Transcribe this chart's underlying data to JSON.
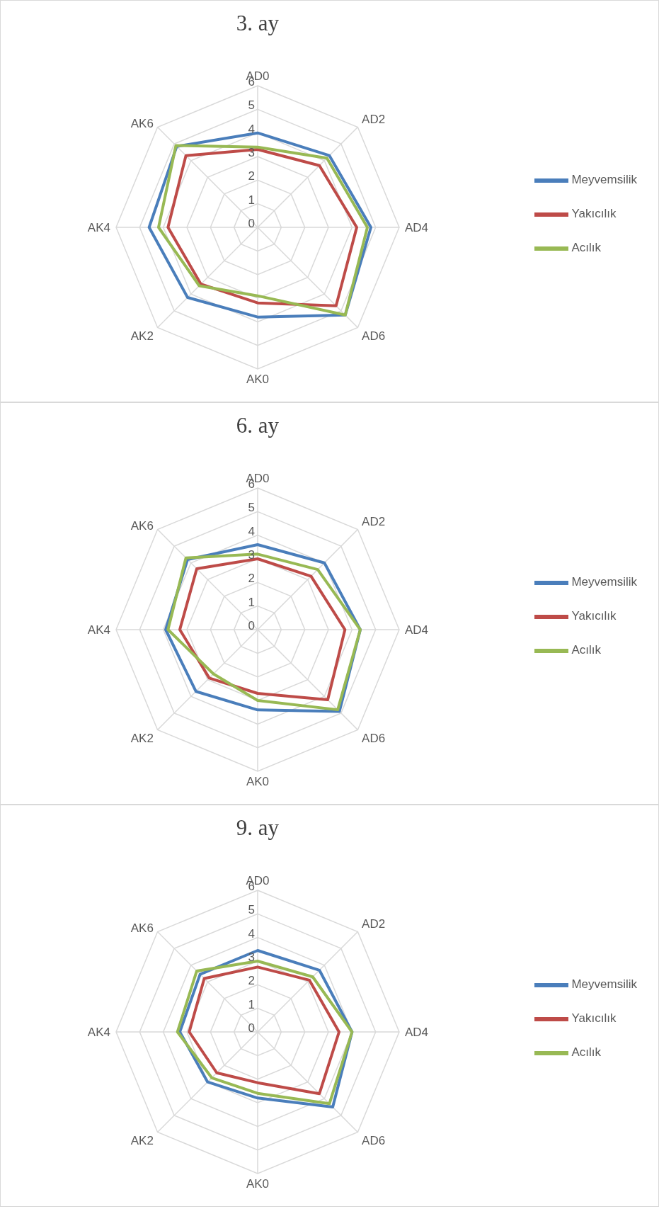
{
  "chart_data": [
    {
      "type": "radar",
      "title": "3. ay",
      "categories": [
        "AD0",
        "AD2",
        "AD4",
        "AD6",
        "AK0",
        "AK2",
        "AK4",
        "AK6"
      ],
      "ylim": [
        0,
        6
      ],
      "yticks": [
        0,
        1,
        2,
        3,
        4,
        5,
        6
      ],
      "grid": true,
      "legend": "right",
      "series": [
        {
          "name": "Meyvemsilik",
          "color": "#4a7ebb",
          "values": [
            4.0,
            4.3,
            4.8,
            5.25,
            3.8,
            4.2,
            4.6,
            4.85
          ]
        },
        {
          "name": "Yakıcılık",
          "color": "#be4b48",
          "values": [
            3.3,
            3.7,
            4.2,
            4.7,
            3.2,
            3.4,
            3.8,
            4.3
          ]
        },
        {
          "name": "Acılık",
          "color": "#98b954",
          "values": [
            3.4,
            4.15,
            4.65,
            5.25,
            2.9,
            3.5,
            4.2,
            4.9
          ]
        }
      ]
    },
    {
      "type": "radar",
      "title": "6. ay",
      "categories": [
        "AD0",
        "AD2",
        "AD4",
        "AD6",
        "AK0",
        "AK2",
        "AK4",
        "AK6"
      ],
      "ylim": [
        0,
        6
      ],
      "yticks": [
        0,
        1,
        2,
        3,
        4,
        5,
        6
      ],
      "grid": true,
      "legend": "right",
      "series": [
        {
          "name": "Meyvemsilik",
          "color": "#4a7ebb",
          "values": [
            3.6,
            4.0,
            4.35,
            4.9,
            3.4,
            3.7,
            3.9,
            4.2
          ]
        },
        {
          "name": "Yakıcılık",
          "color": "#be4b48",
          "values": [
            3.0,
            3.2,
            3.7,
            4.2,
            2.7,
            2.9,
            3.3,
            3.65
          ]
        },
        {
          "name": "Acılık",
          "color": "#98b954",
          "values": [
            3.2,
            3.6,
            4.35,
            4.8,
            3.0,
            2.65,
            3.8,
            4.3
          ]
        }
      ]
    },
    {
      "type": "radar",
      "title": "9. ay",
      "categories": [
        "AD0",
        "AD2",
        "AD4",
        "AD6",
        "AK0",
        "AK2",
        "AK4",
        "AK6"
      ],
      "ylim": [
        0,
        6
      ],
      "yticks": [
        0,
        1,
        2,
        3,
        4,
        5,
        6
      ],
      "grid": true,
      "legend": "right",
      "series": [
        {
          "name": "Meyvemsilik",
          "color": "#4a7ebb",
          "values": [
            3.45,
            3.7,
            4.0,
            4.5,
            2.8,
            3.0,
            3.3,
            3.45
          ]
        },
        {
          "name": "Yakıcılık",
          "color": "#be4b48",
          "values": [
            2.75,
            3.1,
            3.45,
            3.7,
            2.15,
            2.45,
            2.9,
            3.2
          ]
        },
        {
          "name": "Acılık",
          "color": "#98b954",
          "values": [
            3.0,
            3.3,
            4.0,
            4.3,
            2.6,
            2.75,
            3.4,
            3.65
          ]
        }
      ]
    }
  ]
}
